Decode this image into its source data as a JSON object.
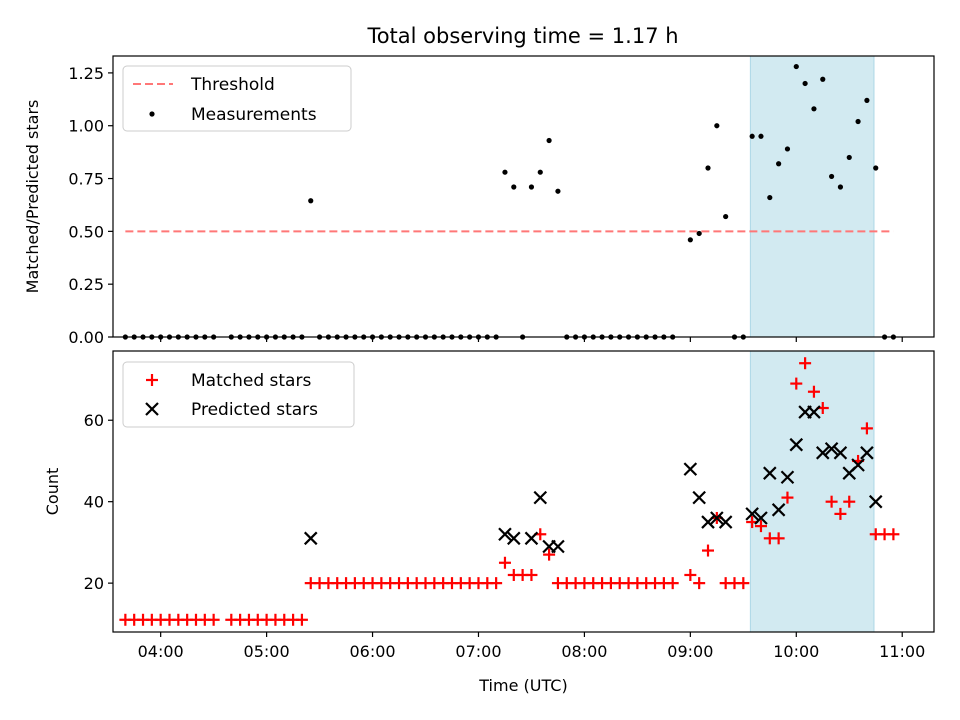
{
  "title": "Total observing time = 1.17 h",
  "chart_data": [
    {
      "type": "scatter",
      "panel": "top",
      "ylabel": "Matched/Predicted stars",
      "ylim": [
        0,
        1.33
      ],
      "yticks": [
        0,
        0.25,
        0.5,
        0.75,
        1.0,
        1.25
      ],
      "ytick_labels": [
        "0.00",
        "0.25",
        "0.50",
        "0.75",
        "1.00",
        "1.25"
      ],
      "xlim": [
        "03:33",
        "11:18"
      ],
      "legend_position": "top-left",
      "grid": false,
      "highlight_band": {
        "x_start": "09:34",
        "x_end": "10:44",
        "color": "#add8e6"
      },
      "threshold": {
        "name": "Threshold",
        "y": 0.5,
        "x_start": "03:40",
        "x_end": "10:55",
        "color": "#ff7777",
        "style": "dashed"
      },
      "series": [
        {
          "name": "Measurements",
          "color": "#000000",
          "marker": "dot",
          "points": [
            [
              "03:40",
              0
            ],
            [
              "03:45",
              0
            ],
            [
              "03:50",
              0
            ],
            [
              "03:55",
              0
            ],
            [
              "04:00",
              0
            ],
            [
              "04:05",
              0
            ],
            [
              "04:10",
              0
            ],
            [
              "04:15",
              0
            ],
            [
              "04:20",
              0
            ],
            [
              "04:25",
              0
            ],
            [
              "04:30",
              0
            ],
            [
              "04:40",
              0
            ],
            [
              "04:45",
              0
            ],
            [
              "04:50",
              0
            ],
            [
              "04:55",
              0
            ],
            [
              "05:00",
              0
            ],
            [
              "05:05",
              0
            ],
            [
              "05:10",
              0
            ],
            [
              "05:15",
              0
            ],
            [
              "05:20",
              0
            ],
            [
              "05:25",
              0.645
            ],
            [
              "05:30",
              0
            ],
            [
              "05:35",
              0
            ],
            [
              "05:40",
              0
            ],
            [
              "05:45",
              0
            ],
            [
              "05:50",
              0
            ],
            [
              "05:55",
              0
            ],
            [
              "06:00",
              0
            ],
            [
              "06:05",
              0
            ],
            [
              "06:10",
              0
            ],
            [
              "06:15",
              0
            ],
            [
              "06:20",
              0
            ],
            [
              "06:25",
              0
            ],
            [
              "06:30",
              0
            ],
            [
              "06:35",
              0
            ],
            [
              "06:40",
              0
            ],
            [
              "06:45",
              0
            ],
            [
              "06:50",
              0
            ],
            [
              "06:55",
              0
            ],
            [
              "07:00",
              0
            ],
            [
              "07:05",
              0
            ],
            [
              "07:10",
              0
            ],
            [
              "07:15",
              0.78
            ],
            [
              "07:20",
              0.71
            ],
            [
              "07:25",
              0
            ],
            [
              "07:30",
              0.71
            ],
            [
              "07:35",
              0.78
            ],
            [
              "07:40",
              0.93
            ],
            [
              "07:45",
              0.69
            ],
            [
              "07:50",
              0
            ],
            [
              "07:55",
              0
            ],
            [
              "08:00",
              0
            ],
            [
              "08:05",
              0
            ],
            [
              "08:10",
              0
            ],
            [
              "08:15",
              0
            ],
            [
              "08:20",
              0
            ],
            [
              "08:25",
              0
            ],
            [
              "08:30",
              0
            ],
            [
              "08:35",
              0
            ],
            [
              "08:40",
              0
            ],
            [
              "08:45",
              0
            ],
            [
              "08:50",
              0
            ],
            [
              "09:00",
              0.46
            ],
            [
              "09:05",
              0.49
            ],
            [
              "09:10",
              0.8
            ],
            [
              "09:15",
              1.0
            ],
            [
              "09:20",
              0.57
            ],
            [
              "09:25",
              0
            ],
            [
              "09:30",
              0
            ],
            [
              "09:35",
              0.95
            ],
            [
              "09:40",
              0.95
            ],
            [
              "09:45",
              0.66
            ],
            [
              "09:50",
              0.82
            ],
            [
              "09:55",
              0.89
            ],
            [
              "10:00",
              1.28
            ],
            [
              "10:05",
              1.2
            ],
            [
              "10:10",
              1.08
            ],
            [
              "10:15",
              1.22
            ],
            [
              "10:20",
              0.76
            ],
            [
              "10:25",
              0.71
            ],
            [
              "10:30",
              0.85
            ],
            [
              "10:35",
              1.02
            ],
            [
              "10:40",
              1.12
            ],
            [
              "10:45",
              0.8
            ],
            [
              "10:50",
              0
            ],
            [
              "10:55",
              0
            ]
          ]
        }
      ]
    },
    {
      "type": "scatter",
      "panel": "bottom",
      "xlabel": "Time (UTC)",
      "ylabel": "Count",
      "ylim": [
        8,
        77
      ],
      "yticks": [
        20,
        40,
        60
      ],
      "ytick_labels": [
        "20",
        "40",
        "60"
      ],
      "xlim": [
        "03:33",
        "11:18"
      ],
      "xticks": [
        "04:00",
        "05:00",
        "06:00",
        "07:00",
        "08:00",
        "09:00",
        "10:00",
        "11:00"
      ],
      "xtick_labels": [
        "04:00",
        "05:00",
        "06:00",
        "07:00",
        "08:00",
        "09:00",
        "10:00",
        "11:00"
      ],
      "legend_position": "top-left",
      "grid": false,
      "highlight_band": {
        "x_start": "09:34",
        "x_end": "10:44",
        "color": "#add8e6"
      },
      "series": [
        {
          "name": "Matched stars",
          "color": "#ff0000",
          "marker": "plus",
          "points": [
            [
              "03:40",
              11
            ],
            [
              "03:45",
              11
            ],
            [
              "03:50",
              11
            ],
            [
              "03:55",
              11
            ],
            [
              "04:00",
              11
            ],
            [
              "04:05",
              11
            ],
            [
              "04:10",
              11
            ],
            [
              "04:15",
              11
            ],
            [
              "04:20",
              11
            ],
            [
              "04:25",
              11
            ],
            [
              "04:30",
              11
            ],
            [
              "04:40",
              11
            ],
            [
              "04:45",
              11
            ],
            [
              "04:50",
              11
            ],
            [
              "04:55",
              11
            ],
            [
              "05:00",
              11
            ],
            [
              "05:05",
              11
            ],
            [
              "05:10",
              11
            ],
            [
              "05:15",
              11
            ],
            [
              "05:20",
              11
            ],
            [
              "05:25",
              20
            ],
            [
              "05:30",
              20
            ],
            [
              "05:35",
              20
            ],
            [
              "05:40",
              20
            ],
            [
              "05:45",
              20
            ],
            [
              "05:50",
              20
            ],
            [
              "05:55",
              20
            ],
            [
              "06:00",
              20
            ],
            [
              "06:05",
              20
            ],
            [
              "06:10",
              20
            ],
            [
              "06:15",
              20
            ],
            [
              "06:20",
              20
            ],
            [
              "06:25",
              20
            ],
            [
              "06:30",
              20
            ],
            [
              "06:35",
              20
            ],
            [
              "06:40",
              20
            ],
            [
              "06:45",
              20
            ],
            [
              "06:50",
              20
            ],
            [
              "06:55",
              20
            ],
            [
              "07:00",
              20
            ],
            [
              "07:05",
              20
            ],
            [
              "07:10",
              20
            ],
            [
              "07:15",
              25
            ],
            [
              "07:20",
              22
            ],
            [
              "07:25",
              22
            ],
            [
              "07:30",
              22
            ],
            [
              "07:35",
              32
            ],
            [
              "07:40",
              27
            ],
            [
              "07:45",
              20
            ],
            [
              "07:50",
              20
            ],
            [
              "07:55",
              20
            ],
            [
              "08:00",
              20
            ],
            [
              "08:05",
              20
            ],
            [
              "08:10",
              20
            ],
            [
              "08:15",
              20
            ],
            [
              "08:20",
              20
            ],
            [
              "08:25",
              20
            ],
            [
              "08:30",
              20
            ],
            [
              "08:35",
              20
            ],
            [
              "08:40",
              20
            ],
            [
              "08:45",
              20
            ],
            [
              "08:50",
              20
            ],
            [
              "09:00",
              22
            ],
            [
              "09:05",
              20
            ],
            [
              "09:10",
              28
            ],
            [
              "09:15",
              36
            ],
            [
              "09:20",
              20
            ],
            [
              "09:25",
              20
            ],
            [
              "09:30",
              20
            ],
            [
              "09:35",
              35
            ],
            [
              "09:40",
              34
            ],
            [
              "09:45",
              31
            ],
            [
              "09:50",
              31
            ],
            [
              "09:55",
              41
            ],
            [
              "10:00",
              69
            ],
            [
              "10:05",
              74
            ],
            [
              "10:10",
              67
            ],
            [
              "10:15",
              63
            ],
            [
              "10:20",
              40
            ],
            [
              "10:25",
              37
            ],
            [
              "10:30",
              40
            ],
            [
              "10:35",
              50
            ],
            [
              "10:40",
              58
            ],
            [
              "10:45",
              32
            ],
            [
              "10:50",
              32
            ],
            [
              "10:55",
              32
            ]
          ]
        },
        {
          "name": "Predicted stars",
          "color": "#000000",
          "marker": "x",
          "points": [
            [
              "05:25",
              31
            ],
            [
              "07:15",
              32
            ],
            [
              "07:20",
              31
            ],
            [
              "07:30",
              31
            ],
            [
              "07:35",
              41
            ],
            [
              "07:40",
              29
            ],
            [
              "07:45",
              29
            ],
            [
              "09:00",
              48
            ],
            [
              "09:05",
              41
            ],
            [
              "09:10",
              35
            ],
            [
              "09:15",
              36
            ],
            [
              "09:20",
              35
            ],
            [
              "09:35",
              37
            ],
            [
              "09:40",
              36
            ],
            [
              "09:45",
              47
            ],
            [
              "09:50",
              38
            ],
            [
              "09:55",
              46
            ],
            [
              "10:00",
              54
            ],
            [
              "10:05",
              62
            ],
            [
              "10:10",
              62
            ],
            [
              "10:15",
              52
            ],
            [
              "10:20",
              53
            ],
            [
              "10:25",
              52
            ],
            [
              "10:30",
              47
            ],
            [
              "10:35",
              49
            ],
            [
              "10:40",
              52
            ],
            [
              "10:45",
              40
            ]
          ]
        }
      ]
    }
  ],
  "legend_top": {
    "threshold_label": "Threshold",
    "measurements_label": "Measurements"
  },
  "legend_bottom": {
    "matched_label": "Matched stars",
    "predicted_label": "Predicted stars"
  }
}
